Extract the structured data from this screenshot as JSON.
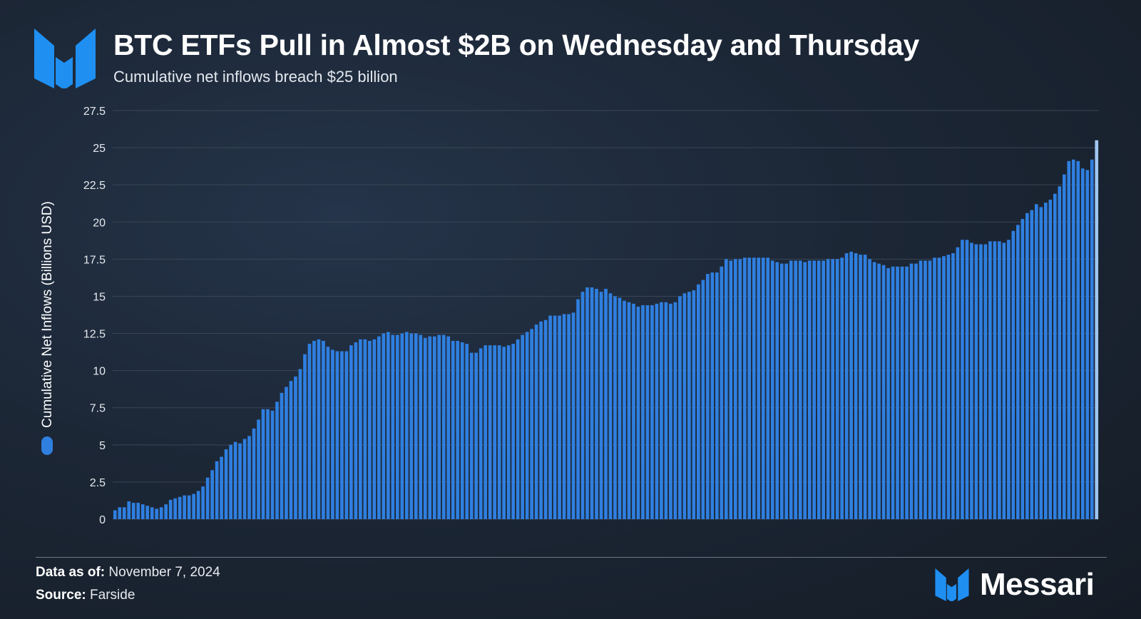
{
  "header": {
    "title": "BTC ETFs Pull in Almost $2B on Wednesday and Thursday",
    "subtitle": "Cumulative net inflows breach $25 billion"
  },
  "footer": {
    "date_label": "Data as of:",
    "date_value": "November 7, 2024",
    "source_label": "Source:",
    "source_value": "Farside"
  },
  "brand": {
    "name": "Messari",
    "icon": "messari-logo"
  },
  "colors": {
    "bar": "#2f7fe0",
    "bar_latest": "#9fc6f2",
    "grid": "#3a4656",
    "background": "#1c2736"
  },
  "chart_data": {
    "type": "bar",
    "title": "BTC ETFs Pull in Almost $2B on Wednesday and Thursday",
    "subtitle": "Cumulative net inflows breach $25 billion",
    "xlabel": "",
    "ylabel": "Cumulative Net Inflows (Billions USD)",
    "ylim": [
      0,
      27.5
    ],
    "yticks": [
      0,
      2.5,
      5,
      7.5,
      10,
      12.5,
      15,
      17.5,
      20,
      22.5,
      25,
      27.5
    ],
    "ytick_labels": [
      "0",
      "2.5",
      "5",
      "7.5",
      "10",
      "12.5",
      "15",
      "17.5",
      "20",
      "22.5",
      "25",
      "27.5"
    ],
    "grid": true,
    "legend": "left",
    "series": [
      {
        "values": [
          0.6,
          0.8,
          0.8,
          1.2,
          1.1,
          1.1,
          1.0,
          0.9,
          0.8,
          0.7,
          0.8,
          1.0,
          1.3,
          1.4,
          1.5,
          1.6,
          1.6,
          1.7,
          1.9,
          2.2,
          2.8,
          3.3,
          3.9,
          4.2,
          4.7,
          5.0,
          5.2,
          5.1,
          5.4,
          5.6,
          6.1,
          6.7,
          7.4,
          7.4,
          7.3,
          7.9,
          8.5,
          8.9,
          9.3,
          9.6,
          10.1,
          11.1,
          11.8,
          12.0,
          12.1,
          12.0,
          11.6,
          11.4,
          11.3,
          11.3,
          11.3,
          11.7,
          11.9,
          12.1,
          12.1,
          12.0,
          12.1,
          12.3,
          12.5,
          12.6,
          12.4,
          12.4,
          12.5,
          12.6,
          12.5,
          12.5,
          12.4,
          12.2,
          12.3,
          12.3,
          12.4,
          12.4,
          12.3,
          12.0,
          12.0,
          11.9,
          11.8,
          11.2,
          11.2,
          11.5,
          11.7,
          11.7,
          11.7,
          11.7,
          11.6,
          11.7,
          11.8,
          12.1,
          12.4,
          12.6,
          12.8,
          13.1,
          13.3,
          13.4,
          13.7,
          13.7,
          13.7,
          13.8,
          13.8,
          13.9,
          14.8,
          15.3,
          15.6,
          15.6,
          15.5,
          15.3,
          15.5,
          15.2,
          15.0,
          14.9,
          14.7,
          14.6,
          14.5,
          14.3,
          14.4,
          14.4,
          14.4,
          14.5,
          14.6,
          14.6,
          14.5,
          14.6,
          15.0,
          15.2,
          15.3,
          15.4,
          15.8,
          16.1,
          16.5,
          16.6,
          16.6,
          17.0,
          17.5,
          17.4,
          17.5,
          17.5,
          17.6,
          17.6,
          17.6,
          17.6,
          17.6,
          17.6,
          17.4,
          17.3,
          17.2,
          17.2,
          17.4,
          17.4,
          17.4,
          17.3,
          17.4,
          17.4,
          17.4,
          17.4,
          17.5,
          17.5,
          17.5,
          17.6,
          17.9,
          18.0,
          17.9,
          17.8,
          17.8,
          17.5,
          17.3,
          17.2,
          17.1,
          16.9,
          17.0,
          17.0,
          17.0,
          17.0,
          17.2,
          17.2,
          17.4,
          17.4,
          17.4,
          17.6,
          17.6,
          17.7,
          17.8,
          17.9,
          18.3,
          18.8,
          18.8,
          18.6,
          18.5,
          18.5,
          18.5,
          18.7,
          18.7,
          18.7,
          18.6,
          18.8,
          19.4,
          19.8,
          20.2,
          20.6,
          20.8,
          21.2,
          21.0,
          21.3,
          21.5,
          21.9,
          22.4,
          23.2,
          24.1,
          24.2,
          24.1,
          23.6,
          23.5,
          24.2,
          25.5
        ]
      }
    ]
  }
}
